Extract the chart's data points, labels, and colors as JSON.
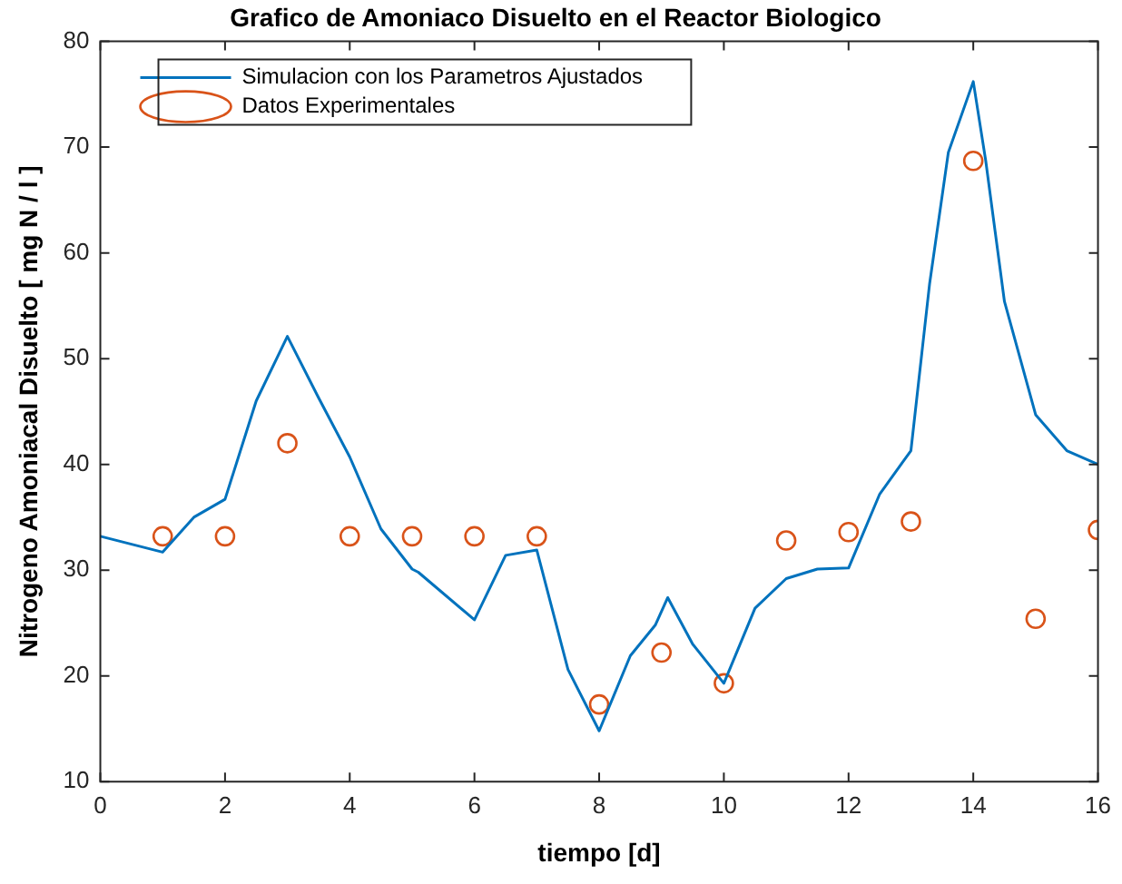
{
  "chart_data": {
    "type": "line",
    "title": "Grafico de Amoniaco Disuelto en el Reactor Biologico",
    "xlabel": "tiempo [d]",
    "ylabel": "Nitrogeno Amoniacal Disuelto [ mg N / l ]",
    "xlim": [
      0,
      16
    ],
    "xticks": [
      0,
      2,
      4,
      6,
      8,
      10,
      12,
      14,
      16
    ],
    "ylim": [
      10,
      80
    ],
    "yticks": [
      10,
      20,
      30,
      40,
      50,
      60,
      70,
      80
    ],
    "grid": false,
    "legend": "top left",
    "series": [
      {
        "name": "Simulacion con los Parametros Ajustados",
        "type": "line",
        "marker": "none",
        "color": "#0072bd",
        "x": [
          0,
          1,
          1.5,
          2,
          2.5,
          3,
          3.5,
          4,
          4.5,
          5,
          5.1,
          6,
          6.5,
          7,
          7.5,
          8,
          8.5,
          8.9,
          9.1,
          9.5,
          10,
          10.5,
          11,
          11.5,
          12,
          12.5,
          13,
          13.3,
          13.6,
          14,
          14.2,
          14.5,
          15,
          15.5,
          16
        ],
        "values": [
          33.2,
          31.7,
          35,
          36.7,
          46,
          52.1,
          46.3,
          40.7,
          33.9,
          30.1,
          29.8,
          25.3,
          31.4,
          31.9,
          20.6,
          14.8,
          21.9,
          24.8,
          27.4,
          23,
          19.3,
          26.4,
          29.2,
          30.1,
          30.2,
          37.2,
          41.3,
          57.1,
          69.5,
          76.2,
          68.7,
          55.4,
          44.7,
          41.3,
          40
        ]
      },
      {
        "name": "Datos Experimentales",
        "type": "scatter",
        "marker": "circle",
        "color": "#d95319",
        "x": [
          1,
          2,
          3,
          4,
          5,
          6,
          7,
          8,
          9,
          10,
          11,
          12,
          13,
          14,
          15,
          16
        ],
        "values": [
          33.2,
          33.2,
          42,
          33.2,
          33.2,
          33.2,
          33.2,
          17.3,
          22.2,
          19.3,
          32.8,
          33.6,
          34.6,
          68.7,
          25.4,
          33.8
        ]
      }
    ]
  }
}
